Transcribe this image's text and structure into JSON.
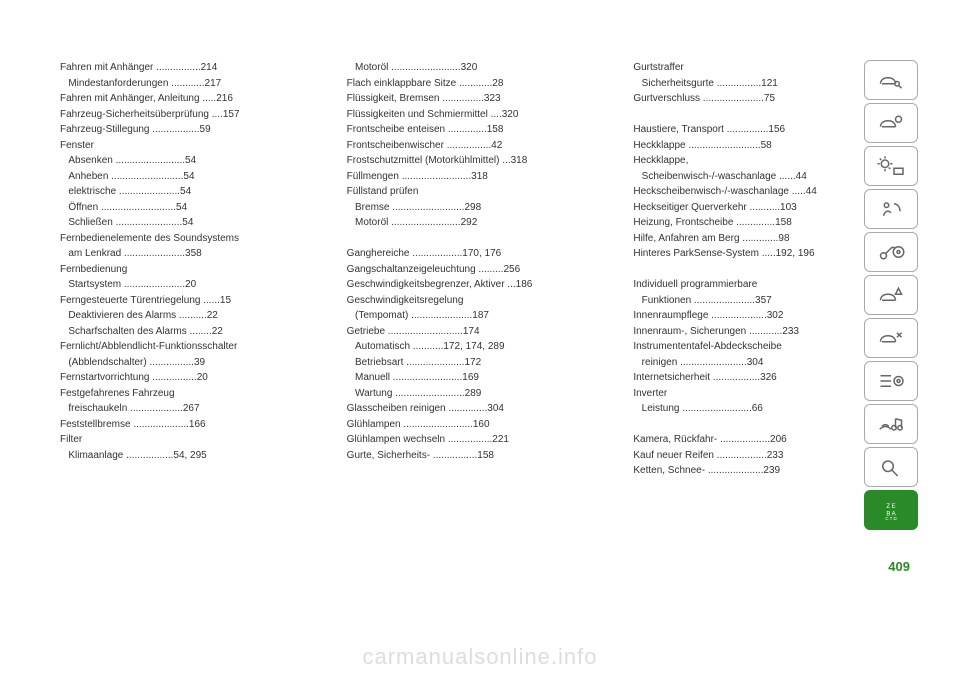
{
  "page_number": "409",
  "watermark": "carmanualsonline.info",
  "columns": [
    [
      {
        "label": "Fahren mit Anhänger",
        "page": ".214"
      },
      {
        "label": "  Mindestanforderungen",
        "page": ".217"
      },
      {
        "label": "Fahren mit Anhänger, Anleitung",
        "page": ".216"
      },
      {
        "label": "Fahrzeug-Sicherheitsüberprüfung",
        "page": ".157"
      },
      {
        "label": "Fahrzeug-Stillegung",
        "page": ".59"
      },
      {
        "label": "Fenster",
        "page": ""
      },
      {
        "label": "  Absenken",
        "page": ".54"
      },
      {
        "label": "  Anheben",
        "page": ".54"
      },
      {
        "label": "  elektrische",
        "page": ".54"
      },
      {
        "label": "  Öffnen",
        "page": ".54"
      },
      {
        "label": "  Schließen",
        "page": ".54"
      },
      {
        "label": "Fernbedienelemente des Soundsystems",
        "page": ""
      },
      {
        "label": "  am Lenkrad",
        "page": ".358"
      },
      {
        "label": "Fernbedienung",
        "page": ""
      },
      {
        "label": "  Startsystem",
        "page": ".20"
      },
      {
        "label": "Ferngesteuerte Türentriegelung",
        "page": ".15"
      },
      {
        "label": "  Deaktivieren des Alarms",
        "page": ".22"
      },
      {
        "label": "  Scharfschalten des Alarms",
        "page": ".22"
      },
      {
        "label": "Fernlicht/Abblendlicht-Funktionsschalter",
        "page": ""
      },
      {
        "label": "  (Abblendschalter)",
        "page": ".39"
      },
      {
        "label": "Fernstartvorrichtung",
        "page": ".20"
      },
      {
        "label": "Festgefahrenes Fahrzeug",
        "page": ""
      },
      {
        "label": "  freischaukeln",
        "page": ".267"
      },
      {
        "label": "Feststellbremse",
        "page": ".166"
      },
      {
        "label": "Filter",
        "page": ""
      },
      {
        "label": "  Klimaanlage",
        "page": ".54, 295"
      }
    ],
    [
      {
        "label": "  Motoröl",
        "page": ".320"
      },
      {
        "label": "Flach einklappbare Sitze",
        "page": ".28"
      },
      {
        "label": "Flüssigkeit, Bremsen",
        "page": ".323"
      },
      {
        "label": "Flüssigkeiten und Schmiermittel",
        "page": ".320"
      },
      {
        "label": "Frontscheibe enteisen",
        "page": ".158"
      },
      {
        "label": "Frontscheibenwischer",
        "page": ".42"
      },
      {
        "label": "Frostschutzmittel (Motorkühlmittel)",
        "page": ".318"
      },
      {
        "label": "Füllmengen",
        "page": ".318"
      },
      {
        "label": "Füllstand prüfen",
        "page": ""
      },
      {
        "label": "  Bremse",
        "page": ".298"
      },
      {
        "label": "  Motoröl",
        "page": ".292"
      },
      {
        "label": "",
        "page": ""
      },
      {
        "label": "Ganghereiche",
        "page": ".170, 176"
      },
      {
        "label": "Gangschaltanzeigeleuchtung",
        "page": ".256"
      },
      {
        "label": "Geschwindigkeitsbegrenzer, Aktiver",
        "page": ".186"
      },
      {
        "label": "Geschwindigkeitsregelung",
        "page": ""
      },
      {
        "label": "  (Tempomat)",
        "page": ".187"
      },
      {
        "label": "Getriebe",
        "page": ".174"
      },
      {
        "label": "  Automatisch",
        "page": ".172, 174, 289"
      },
      {
        "label": "  Betriebsart",
        "page": ".172"
      },
      {
        "label": "  Manuell",
        "page": ".169"
      },
      {
        "label": "  Wartung",
        "page": ".289"
      },
      {
        "label": "Glasscheiben reinigen",
        "page": ".304"
      },
      {
        "label": "Glühlampen",
        "page": ".160"
      },
      {
        "label": "Glühlampen wechseln",
        "page": ".221"
      },
      {
        "label": "Gurte, Sicherheits-",
        "page": ".158"
      }
    ],
    [
      {
        "label": "Gurtstraffer",
        "page": ""
      },
      {
        "label": "  Sicherheitsgurte",
        "page": ".121"
      },
      {
        "label": "Gurtverschluss",
        "page": ".75"
      },
      {
        "label": "",
        "page": ""
      },
      {
        "label": "Haustiere, Transport",
        "page": ".156"
      },
      {
        "label": "Heckklappe",
        "page": ".58"
      },
      {
        "label": "Heckklappe,",
        "page": ""
      },
      {
        "label": "  Scheibenwisch-/-waschanlage",
        "page": ".44"
      },
      {
        "label": "Heckscheibenwisch-/-waschanlage",
        "page": ".44"
      },
      {
        "label": "Heckseitiger Querverkehr",
        "page": ".103"
      },
      {
        "label": "Heizung, Frontscheibe",
        "page": ".158"
      },
      {
        "label": "Hilfe, Anfahren am Berg",
        "page": ".98"
      },
      {
        "label": "Hinteres ParkSense-System",
        "page": ".192, 196"
      },
      {
        "label": "",
        "page": ""
      },
      {
        "label": "Individuell programmierbare",
        "page": ""
      },
      {
        "label": "  Funktionen",
        "page": ".357"
      },
      {
        "label": "Innenraumpflege",
        "page": ".302"
      },
      {
        "label": "Innenraum-, Sicherungen",
        "page": ".233"
      },
      {
        "label": "Instrumententafel-Abdeckscheibe",
        "page": ""
      },
      {
        "label": "  reinigen",
        "page": ".304"
      },
      {
        "label": "Internetsicherheit",
        "page": ".326"
      },
      {
        "label": "Inverter",
        "page": ""
      },
      {
        "label": "  Leistung",
        "page": ".66"
      },
      {
        "label": "",
        "page": ""
      },
      {
        "label": "Kamera, Rückfahr-",
        "page": ".206"
      },
      {
        "label": "Kauf neuer Reifen",
        "page": ".233"
      },
      {
        "label": "Ketten, Schnee-",
        "page": ".239"
      }
    ]
  ],
  "icons": [
    "car-search",
    "car-eco",
    "sun-mail",
    "airbag",
    "key-wheel",
    "car-warn",
    "car-wrench",
    "list-gear",
    "wifi-music",
    "search",
    "index"
  ]
}
